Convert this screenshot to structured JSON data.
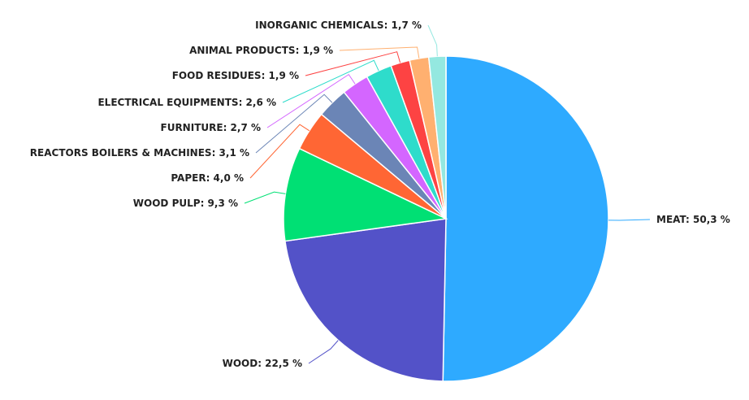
{
  "chart_data": {
    "type": "pie",
    "categories": [
      "MEAT",
      "WOOD",
      "WOOD PULP",
      "PAPER",
      "REACTORS BOILERS & MACHINES",
      "FURNITURE",
      "ELECTRICAL EQUIPMENTS",
      "FOOD RESIDUES",
      "ANIMAL PRODUCTS",
      "INORGANIC CHEMICALS"
    ],
    "values": [
      50.3,
      22.5,
      9.3,
      4.0,
      3.1,
      2.7,
      2.6,
      1.9,
      1.9,
      1.7
    ],
    "value_labels": [
      ": 50,3 %",
      ": 22,5 %",
      ": 9,3 %",
      ": 4,0 %",
      ": 3,1 %",
      ": 2,7 %",
      ": 2,6 %",
      ": 1,9 %",
      ": 1,9 %",
      ": 1,7 %"
    ],
    "colors": [
      "#2eaaff",
      "#5352c8",
      "#00e074",
      "#ff6634",
      "#6b85b6",
      "#d466ff",
      "#2edccb",
      "#fd4343",
      "#ffb070",
      "#94e8e0"
    ]
  }
}
